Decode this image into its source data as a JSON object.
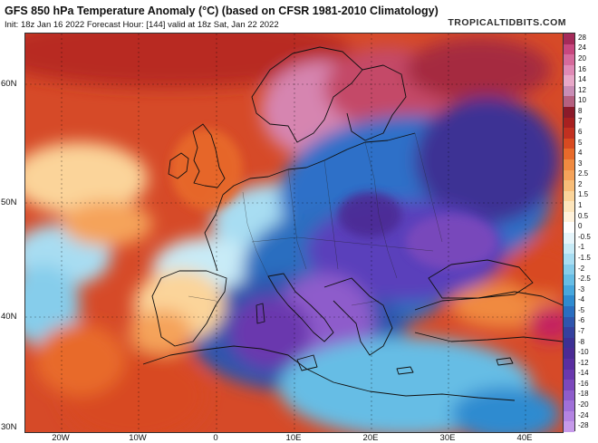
{
  "header": {
    "title": "GFS 850 hPa Temperature Anomaly (°C) (based on CFSR 1981-2010 Climatology)",
    "subtitle": "Init: 18z Jan 16 2022   Forecast Hour: [144]   valid at 18z Sat, Jan 22 2022",
    "brand": "TROPICALTIDBITS.COM"
  },
  "axes": {
    "lat_labels": [
      "60N",
      "50N",
      "40N",
      "30N"
    ],
    "lon_labels": [
      "20W",
      "10W",
      "0",
      "10E",
      "20E",
      "30E",
      "40E"
    ]
  },
  "colorbar": {
    "labels": [
      "28",
      "24",
      "20",
      "16",
      "14",
      "12",
      "10",
      "8",
      "7",
      "6",
      "5",
      "4",
      "3",
      "2.5",
      "2",
      "1.5",
      "1",
      "0.5",
      "0",
      "-0.5",
      "-1",
      "-1.5",
      "-2",
      "-2.5",
      "-3",
      "-4",
      "-5",
      "-6",
      "-7",
      "-8",
      "-10",
      "-12",
      "-14",
      "-16",
      "-18",
      "-20",
      "-24",
      "-28"
    ],
    "colors": [
      "#a52a5a",
      "#c8477f",
      "#d66a9c",
      "#e08ab6",
      "#e8a8c8",
      "#c98db5",
      "#b56080",
      "#8b1a2a",
      "#a82020",
      "#c23020",
      "#d84a20",
      "#e86a2a",
      "#f08a40",
      "#f5a35a",
      "#f8bd78",
      "#fbd49a",
      "#fde5bc",
      "#fff2dc",
      "#ffffff",
      "#e6f5fb",
      "#c8ebf7",
      "#a8ddf2",
      "#86cdeb",
      "#66bde5",
      "#47a7dd",
      "#2f8bd0",
      "#2a6ec0",
      "#2f55ad",
      "#35409e",
      "#3d3094",
      "#4b2a94",
      "#5a2ea0",
      "#6a38ae",
      "#7c48bc",
      "#8e5ccb",
      "#a070d8",
      "#b484e2",
      "#c69aea"
    ]
  },
  "map_colors": {
    "ocean_warm": "#d9522c",
    "pink_anomaly": "#d889b4",
    "deep_cold": "#5a3fbb",
    "mid_blue": "#2f6fc8",
    "light_blue": "#86cdeb",
    "land_lines": "#111111"
  }
}
